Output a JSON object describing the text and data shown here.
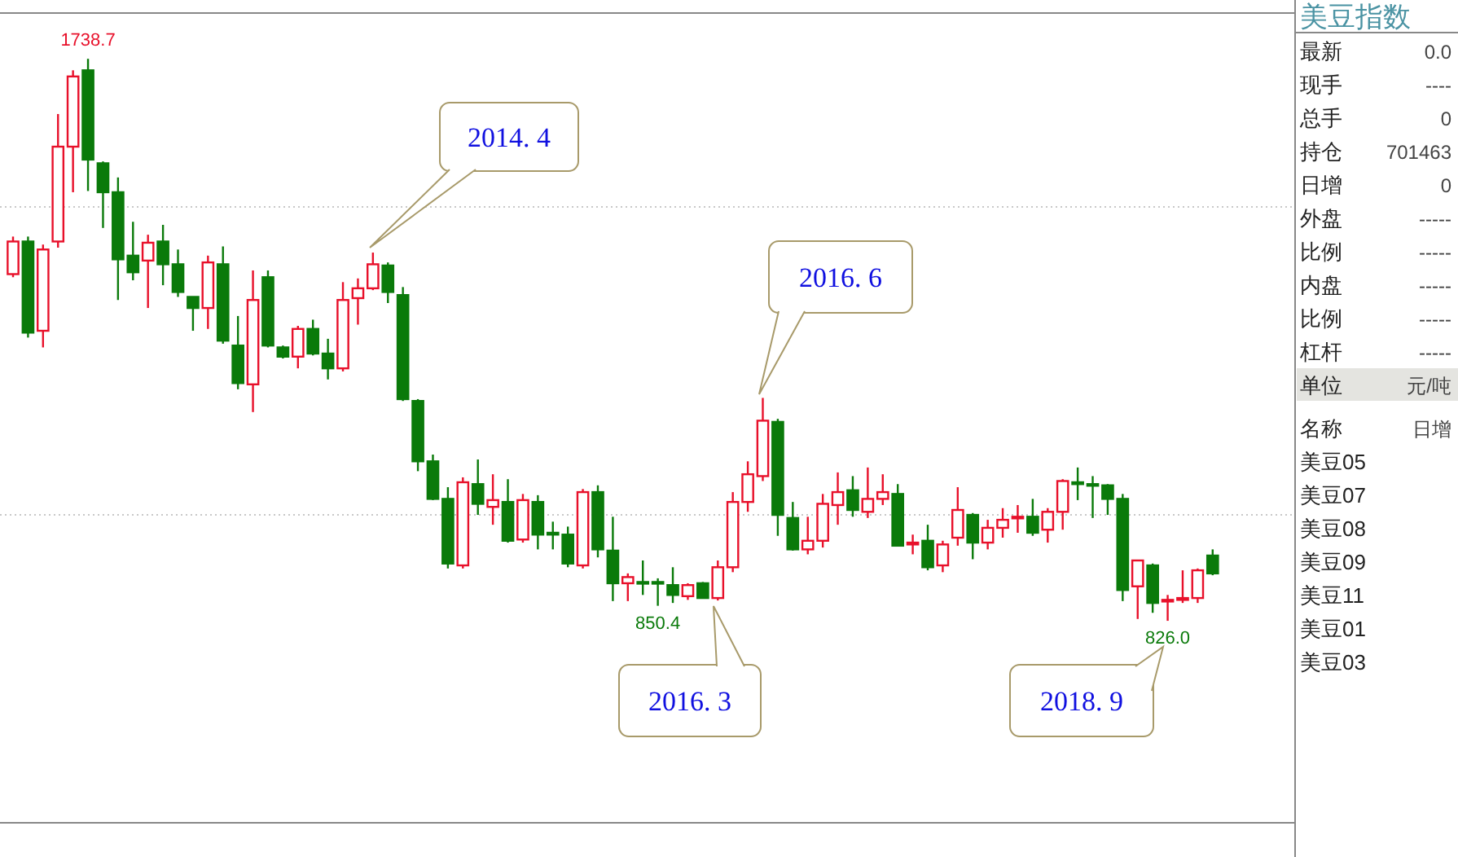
{
  "chart_data": [
    {
      "type": "candlestick",
      "categories": [
        null,
        null,
        null,
        null,
        null,
        null,
        null,
        null,
        null,
        null,
        null,
        null,
        null,
        null,
        null,
        null,
        null,
        null,
        null,
        null,
        null,
        null,
        null,
        null,
        null,
        null,
        null,
        null,
        null,
        null,
        null,
        null,
        null,
        null,
        null,
        null,
        null,
        null,
        null,
        null,
        null,
        null,
        null,
        null,
        null,
        null,
        null,
        null,
        null,
        null,
        null,
        null,
        null,
        null,
        null,
        null,
        null,
        null,
        null,
        null,
        null,
        null,
        null,
        null,
        null,
        null,
        null,
        null,
        null,
        null,
        null,
        null,
        null,
        null,
        null,
        null,
        null,
        null,
        null,
        null,
        null
      ],
      "ohlc": [
        [
          1389,
          1450,
          1384,
          1442
        ],
        [
          1442,
          1450,
          1286,
          1294
        ],
        [
          1297,
          1437,
          1270,
          1429
        ],
        [
          1442,
          1649,
          1432,
          1596
        ],
        [
          1596,
          1720,
          1522,
          1710
        ],
        [
          1720,
          1738.7,
          1524,
          1575
        ],
        [
          1569,
          1572,
          1464,
          1522
        ],
        [
          1522,
          1546,
          1347,
          1413
        ],
        [
          1419,
          1474,
          1379,
          1392
        ],
        [
          1411,
          1453,
          1334,
          1440
        ],
        [
          1442,
          1469,
          1371,
          1405
        ],
        [
          1405,
          1429,
          1352,
          1360
        ],
        [
          1352,
          1352,
          1297,
          1334
        ],
        [
          1334,
          1419,
          1300,
          1408
        ],
        [
          1405,
          1434,
          1276,
          1281
        ],
        [
          1273,
          1321,
          1202,
          1212
        ],
        [
          1210,
          1395,
          1165,
          1347
        ],
        [
          1384,
          1395,
          1270,
          1273
        ],
        [
          1270,
          1273,
          1252,
          1255
        ],
        [
          1255,
          1305,
          1236,
          1300
        ],
        [
          1300,
          1315,
          1257,
          1260
        ],
        [
          1260,
          1284,
          1218,
          1236
        ],
        [
          1236,
          1376,
          1231,
          1347
        ],
        [
          1350,
          1382,
          1307,
          1366
        ],
        [
          1366,
          1424,
          1363,
          1405
        ],
        [
          1403,
          1408,
          1342,
          1360
        ],
        [
          1355,
          1368,
          1183,
          1186
        ],
        [
          1183,
          1186,
          1069,
          1085
        ],
        [
          1085,
          1096,
          1022,
          1024
        ],
        [
          1024,
          1043,
          911,
          919
        ],
        [
          916,
          1059,
          911,
          1051
        ],
        [
          1048,
          1088,
          998,
          1016
        ],
        [
          1011,
          1064,
          982,
          1022
        ],
        [
          1019,
          1056,
          953,
          956
        ],
        [
          958,
          1032,
          953,
          1022
        ],
        [
          1019,
          1030,
          942,
          966
        ],
        [
          969,
          987,
          942,
          966
        ],
        [
          966,
          979,
          913,
          919
        ],
        [
          916,
          1040,
          911,
          1035
        ],
        [
          1035,
          1046,
          929,
          942
        ],
        [
          940,
          995,
          858,
          887
        ],
        [
          887,
          903,
          858,
          897
        ],
        [
          889,
          924,
          868,
          887
        ],
        [
          889,
          895,
          850.4,
          887
        ],
        [
          884,
          913,
          855,
          868
        ],
        [
          866,
          887,
          860,
          884
        ],
        [
          887,
          889,
          863,
          863
        ],
        [
          863,
          924,
          859,
          913
        ],
        [
          913,
          1035,
          905,
          1019
        ],
        [
          1019,
          1085,
          1003,
          1064
        ],
        [
          1061,
          1188,
          1053,
          1151
        ],
        [
          1149,
          1154,
          964,
          998
        ],
        [
          993,
          1019,
          940,
          942
        ],
        [
          942,
          995,
          934,
          956
        ],
        [
          956,
          1032,
          945,
          1016
        ],
        [
          1014,
          1067,
          982,
          1035
        ],
        [
          1038,
          1061,
          995,
          1006
        ],
        [
          1003,
          1075,
          993,
          1024
        ],
        [
          1024,
          1064,
          1014,
          1035
        ],
        [
          1032,
          1048,
          948,
          948
        ],
        [
          950,
          966,
          934,
          953
        ],
        [
          956,
          982,
          908,
          913
        ],
        [
          916,
          956,
          905,
          950
        ],
        [
          961,
          1043,
          948,
          1006
        ],
        [
          998,
          1001,
          926,
          953
        ],
        [
          953,
          990,
          942,
          977
        ],
        [
          977,
          1009,
          961,
          990
        ],
        [
          993,
          1014,
          969,
          995
        ],
        [
          995,
          1024,
          964,
          969
        ],
        [
          974,
          1009,
          953,
          1003
        ],
        [
          1003,
          1056,
          974,
          1053
        ],
        [
          1051,
          1075,
          1022,
          1048
        ],
        [
          1048,
          1061,
          993,
          1046
        ],
        [
          1046,
          1048,
          998,
          1024
        ],
        [
          1024,
          1032,
          858,
          876
        ],
        [
          882,
          924,
          829,
          924
        ],
        [
          916,
          919,
          839,
          855
        ],
        [
          858,
          868,
          826.0,
          860
        ],
        [
          860,
          908,
          855,
          863
        ],
        [
          863,
          911,
          855,
          908
        ],
        [
          932,
          942,
          900,
          903
        ]
      ],
      "colors": [
        "#e8102a",
        "#0a7a0a",
        "#e8102a",
        "#e8102a",
        "#e8102a",
        "#0a7a0a",
        "#0a7a0a",
        "#0a7a0a",
        "#0a7a0a",
        "#e8102a",
        "#0a7a0a",
        "#0a7a0a",
        "#0a7a0a",
        "#e8102a",
        "#0a7a0a",
        "#0a7a0a",
        "#e8102a",
        "#0a7a0a",
        "#0a7a0a",
        "#e8102a",
        "#0a7a0a",
        "#0a7a0a",
        "#e8102a",
        "#e8102a",
        "#e8102a",
        "#0a7a0a",
        "#0a7a0a",
        "#0a7a0a",
        "#0a7a0a",
        "#0a7a0a",
        "#e8102a",
        "#0a7a0a",
        "#e8102a",
        "#0a7a0a",
        "#e8102a",
        "#0a7a0a",
        "#0a7a0a",
        "#0a7a0a",
        "#e8102a",
        "#0a7a0a",
        "#0a7a0a",
        "#e8102a",
        "#0a7a0a",
        "#0a7a0a",
        "#0a7a0a",
        "#e8102a",
        "#0a7a0a",
        "#e8102a",
        "#e8102a",
        "#e8102a",
        "#e8102a",
        "#0a7a0a",
        "#0a7a0a",
        "#e8102a",
        "#e8102a",
        "#e8102a",
        "#0a7a0a",
        "#e8102a",
        "#e8102a",
        "#0a7a0a",
        "#e8102a",
        "#0a7a0a",
        "#e8102a",
        "#e8102a",
        "#0a7a0a",
        "#e8102a",
        "#e8102a",
        "#e8102a",
        "#0a7a0a",
        "#e8102a",
        "#e8102a",
        "#0a7a0a",
        "#0a7a0a",
        "#0a7a0a",
        "#0a7a0a",
        "#e8102a",
        "#0a7a0a",
        "#e8102a",
        "#e8102a",
        "#e8102a",
        "#0a7a0a"
      ],
      "ylim": [
        498,
        1813
      ],
      "yticks": [
        {
          "value": 998,
          "label": null
        },
        {
          "value": 1498,
          "label": null
        }
      ],
      "grid": "y",
      "annotations": [
        {
          "text": "1738.7",
          "y": 1738.7
        },
        {
          "text": "850.4",
          "y": 850.4
        },
        {
          "text": "826.0",
          "y": 826.0
        },
        "2014. 4",
        "2016. 6",
        "2016. 3",
        "2018. 9"
      ]
    },
    {
      "type": "other",
      "title": "美豆指数",
      "annotations": [
        "最新",
        "0.0",
        "现手",
        "----",
        "总手",
        "0",
        "持仓",
        "701463",
        "日增",
        "0",
        "外盘",
        "-----",
        "比例",
        "-----",
        "内盘",
        "-----",
        "比例",
        "-----",
        "杠杆",
        "-----",
        "单位",
        "元/吨",
        "名称",
        "日增",
        "美豆05",
        "美豆07",
        "美豆08",
        "美豆09",
        "美豆11",
        "美豆01",
        "美豆03"
      ]
    }
  ]
}
